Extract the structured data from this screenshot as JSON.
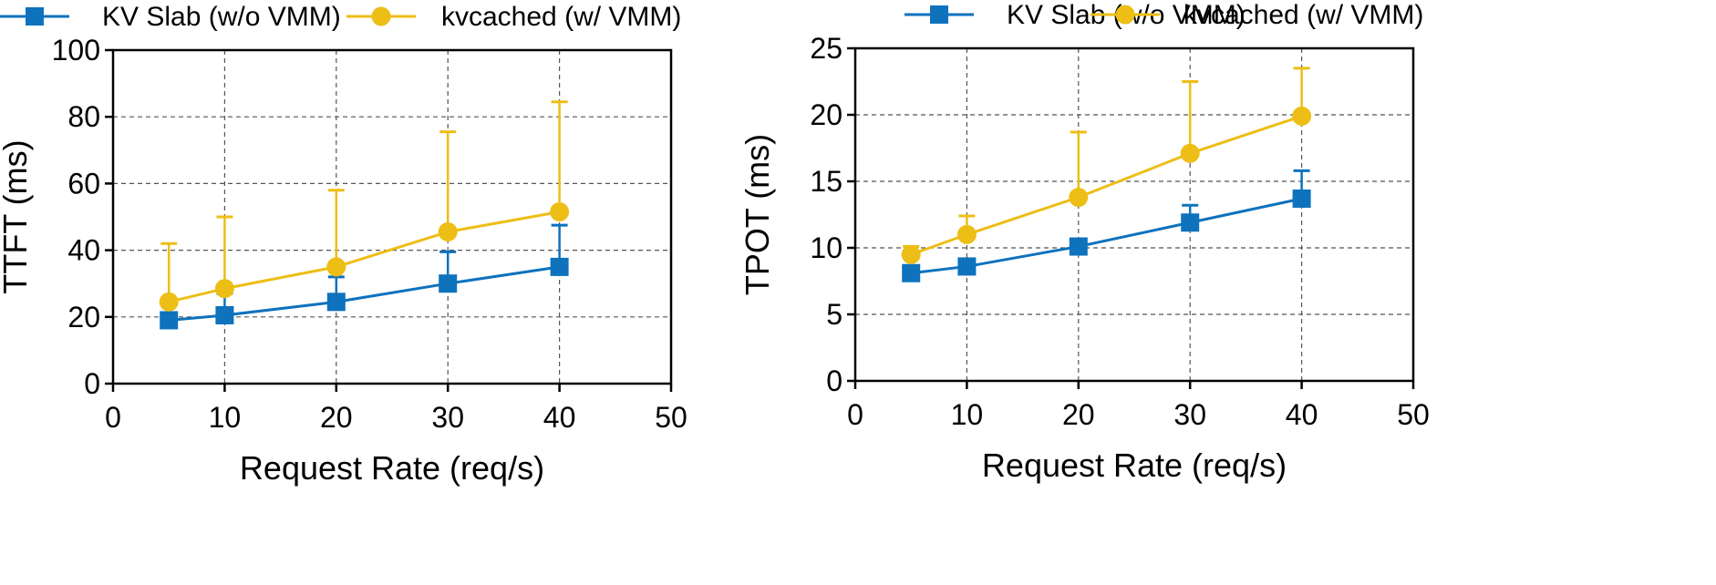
{
  "colors": {
    "blue": "#0E72BD",
    "yellow": "#EDBE15"
  },
  "legend": [
    {
      "label": "KV Slab (w/o VMM)",
      "color": "#0E72BD",
      "marker": "square"
    },
    {
      "label": "kvcached (w/ VMM)",
      "color": "#EDBE15",
      "marker": "circle"
    }
  ],
  "chart_data": [
    {
      "type": "line",
      "id": "ttft",
      "xlabel": "Request Rate (req/s)",
      "ylabel": "TTFT  (ms)",
      "xlim": [
        0,
        50
      ],
      "ylim": [
        0,
        100
      ],
      "xticks": [
        0,
        10,
        20,
        30,
        40,
        50
      ],
      "yticks": [
        0,
        20,
        40,
        60,
        80,
        100
      ],
      "grid": true,
      "x": [
        5,
        10,
        20,
        30,
        40
      ],
      "series": [
        {
          "name": "KV Slab (w/o VMM)",
          "color": "#0E72BD",
          "marker": "square",
          "values": [
            19,
            20.5,
            24.5,
            30,
            35
          ],
          "error_upper": [
            24.5,
            27,
            32,
            39.5,
            47.5
          ]
        },
        {
          "name": "kvcached (w/ VMM)",
          "color": "#EDBE15",
          "marker": "circle",
          "values": [
            24.5,
            28.5,
            35,
            45.5,
            51.5
          ],
          "error_upper": [
            42,
            50,
            58,
            75.5,
            84.5
          ]
        }
      ]
    },
    {
      "type": "line",
      "id": "tpot",
      "xlabel": "Request Rate (req/s)",
      "ylabel": "TPOT  (ms)",
      "xlim": [
        0,
        50
      ],
      "ylim": [
        0,
        25
      ],
      "xticks": [
        0,
        10,
        20,
        30,
        40,
        50
      ],
      "yticks": [
        0,
        5,
        10,
        15,
        20,
        25
      ],
      "grid": true,
      "x": [
        5,
        10,
        20,
        30,
        40
      ],
      "series": [
        {
          "name": "KV Slab (w/o VMM)",
          "color": "#0E72BD",
          "marker": "square",
          "values": [
            8.1,
            8.6,
            10.1,
            11.9,
            13.7
          ],
          "error_upper": [
            8.3,
            8.9,
            10.3,
            13.2,
            15.8
          ]
        },
        {
          "name": "kvcached (w/ VMM)",
          "color": "#EDBE15",
          "marker": "circle",
          "values": [
            9.5,
            11.0,
            13.8,
            17.1,
            19.9
          ],
          "error_upper": [
            10.1,
            12.4,
            18.7,
            22.5,
            23.5
          ]
        }
      ]
    }
  ]
}
